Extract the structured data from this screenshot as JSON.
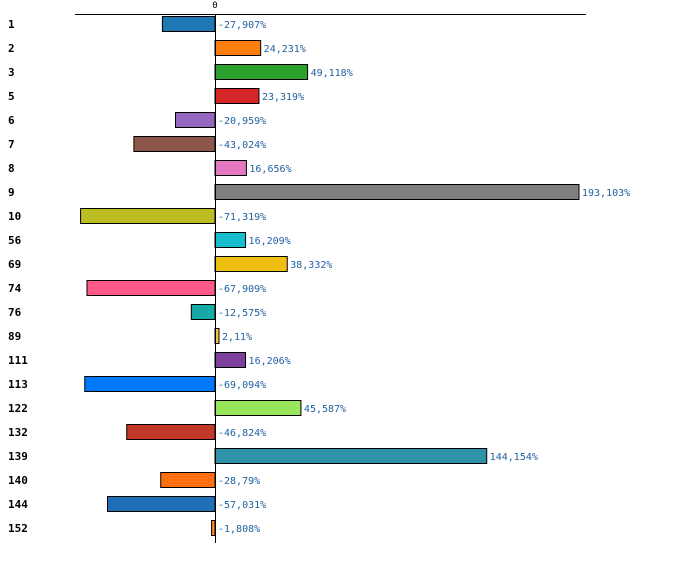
{
  "chart_data": {
    "type": "bar",
    "orientation": "horizontal",
    "title": "",
    "xlabel": "",
    "ylabel": "",
    "xlim": [
      -97,
      200
    ],
    "grid": false,
    "tick_labels": [
      "0"
    ],
    "value_suffix": "%",
    "categories": [
      "1",
      "2",
      "3",
      "5",
      "6",
      "7",
      "8",
      "9",
      "10",
      "56",
      "69",
      "74",
      "76",
      "89",
      "111",
      "113",
      "122",
      "132",
      "139",
      "140",
      "144",
      "152"
    ],
    "values": [
      -27.907,
      24.231,
      49.118,
      23.319,
      -20.959,
      -43.024,
      16.656,
      193.103,
      -71.319,
      16.209,
      38.332,
      -67.909,
      -12.575,
      2.11,
      16.206,
      -69.094,
      45.587,
      -46.824,
      144.154,
      -28.79,
      -57.031,
      -1.808
    ],
    "value_labels": [
      "-27,907%",
      "24,231%",
      "49,118%",
      "23,319%",
      "-20,959%",
      "-43,024%",
      "16,656%",
      "193,103%",
      "-71,319%",
      "16,209%",
      "38,332%",
      "-67,909%",
      "-12,575%",
      "2,11%",
      "16,206%",
      "-69,094%",
      "45,587%",
      "-46,824%",
      "144,154%",
      "-28,79%",
      "-57,031%",
      "-1,808%"
    ],
    "colors": [
      "#1f77b4",
      "#ff7f0e",
      "#2ca02c",
      "#d62728",
      "#9467bd",
      "#8c564b",
      "#e377c2",
      "#7f7f7f",
      "#bcbd22",
      "#17becf",
      "#f0c010",
      "#ff5a8a",
      "#17aaa5",
      "#f5c542",
      "#7b3f9e",
      "#0077ff",
      "#99e65a",
      "#c0392b",
      "#2e93a6",
      "#ff6f10",
      "#1f6fb4",
      "#ff8c1a"
    ]
  }
}
